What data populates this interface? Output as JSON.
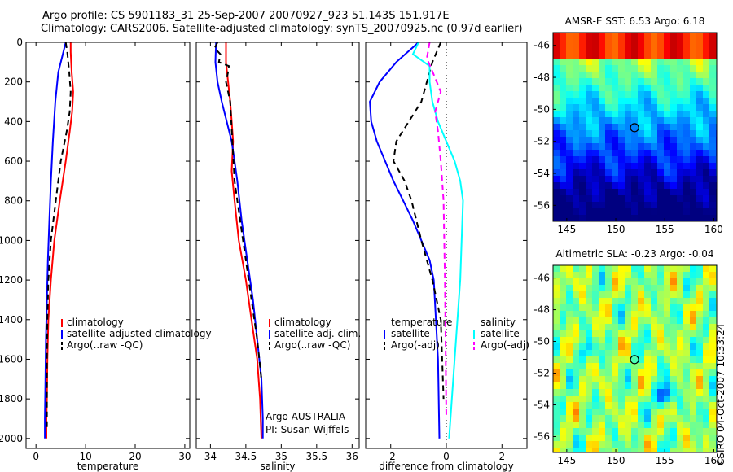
{
  "header": {
    "line1": "Argo profile: CS 5901183_31 25-Sep-2007 20070927_923 51.143S 151.917E",
    "line2": "Climatology: CARS2006. Satellite-adjusted climatology: synTS_20070925.nc (0.97d earlier)"
  },
  "colors": {
    "climatology": "#ff0000",
    "satellite": "#0000ff",
    "argo": "#000000",
    "satellite_salinity_diff": "#00ffff",
    "argo_adj_salinity": "#ff00ff"
  },
  "credits": {
    "line1": "Argo AUSTRALIA",
    "line2": "PI: Susan Wijffels",
    "stamp": "CSIRO 04-Oct-2007 10:33:24"
  },
  "chart_data": [
    {
      "type": "line",
      "xlabel": "temperature",
      "ylabel": "",
      "xlim": [
        -2,
        31
      ],
      "ylim": [
        2050,
        0
      ],
      "y_reversed": true,
      "xticks": [
        0,
        10,
        20,
        30
      ],
      "yticks": [
        0,
        200,
        400,
        600,
        800,
        1000,
        1200,
        1400,
        1600,
        1800,
        2000
      ],
      "legend": [
        "climatology",
        "satellite-adjusted climatology",
        "Argo(..raw -QC)"
      ],
      "legend_loc": "lower-right",
      "series": [
        {
          "name": "climatology",
          "color": "#ff0000",
          "dash": "solid",
          "x": [
            7.0,
            7.0,
            7.2,
            7.5,
            7.3,
            6.8,
            6.0,
            4.8,
            3.7,
            3.0,
            2.5,
            2.3,
            2.2,
            2.1,
            2.1
          ],
          "y": [
            0,
            50,
            150,
            250,
            350,
            450,
            600,
            800,
            1000,
            1200,
            1400,
            1600,
            1800,
            1900,
            2000
          ]
        },
        {
          "name": "satellite-adjusted climatology",
          "color": "#0000ff",
          "dash": "solid",
          "x": [
            6.0,
            5.5,
            4.5,
            3.9,
            3.4,
            3.0,
            2.7,
            2.4,
            2.2,
            2.0,
            1.9,
            1.8,
            1.8,
            1.8
          ],
          "y": [
            0,
            50,
            150,
            300,
            500,
            700,
            900,
            1100,
            1300,
            1500,
            1700,
            1900,
            1960,
            2000
          ]
        },
        {
          "name": "Argo(..raw -QC)",
          "color": "#000000",
          "dash": "dash",
          "x": [
            6.0,
            6.3,
            6.7,
            7.0,
            6.8,
            6.2,
            5.0,
            4.0,
            3.0,
            2.5,
            2.3,
            2.2,
            2.2,
            2.2
          ],
          "y": [
            0,
            50,
            150,
            250,
            350,
            450,
            600,
            800,
            1000,
            1200,
            1400,
            1600,
            1800,
            1960
          ]
        }
      ]
    },
    {
      "type": "line",
      "xlabel": "salinity",
      "ylabel": "",
      "xlim": [
        33.8,
        36.1
      ],
      "ylim": [
        2050,
        0
      ],
      "y_reversed": true,
      "xticks": [
        34,
        34.5,
        35,
        35.5,
        36
      ],
      "tick_labels": [
        "34",
        "34.5",
        "35",
        "35.5",
        "36"
      ],
      "legend": [
        "climatology",
        "satellite adj. clim.",
        "Argo(..raw -QC)"
      ],
      "legend_loc": "lower-right",
      "series": [
        {
          "name": "climatology",
          "color": "#ff0000",
          "dash": "solid",
          "x": [
            34.22,
            34.22,
            34.25,
            34.28,
            34.3,
            34.32,
            34.3,
            34.34,
            34.4,
            34.5,
            34.58,
            34.66,
            34.7,
            34.72
          ],
          "y": [
            0,
            100,
            200,
            300,
            400,
            500,
            650,
            800,
            1000,
            1200,
            1400,
            1600,
            1800,
            2000
          ]
        },
        {
          "name": "satellite adj. clim.",
          "color": "#0000ff",
          "dash": "solid",
          "x": [
            34.08,
            34.07,
            34.1,
            34.16,
            34.23,
            34.3,
            34.34,
            34.38,
            34.44,
            34.52,
            34.6,
            34.66,
            34.72,
            34.74,
            34.74
          ],
          "y": [
            0,
            100,
            200,
            300,
            400,
            500,
            600,
            700,
            900,
            1100,
            1300,
            1500,
            1700,
            1900,
            2000
          ]
        },
        {
          "name": "Argo(..raw -QC)",
          "color": "#000000",
          "dash": "dash",
          "x": [
            34.1,
            34.06,
            34.14,
            34.12,
            34.26,
            34.25,
            34.22,
            34.28,
            34.31,
            34.34,
            34.42,
            34.5,
            34.58,
            34.66,
            34.72
          ],
          "y": [
            0,
            30,
            60,
            100,
            120,
            150,
            200,
            300,
            500,
            700,
            900,
            1100,
            1300,
            1500,
            1700
          ]
        }
      ]
    },
    {
      "type": "line",
      "xlabel": "difference from climatology",
      "ylabel": "",
      "xlim": [
        -2.9,
        2.9
      ],
      "ylim": [
        2050,
        0
      ],
      "y_reversed": true,
      "xticks": [
        -2,
        0,
        2
      ],
      "legend_groups": [
        {
          "title": "temperature",
          "entries": [
            "satellite",
            "Argo(-adj)"
          ]
        },
        {
          "title": "salinity",
          "entries": [
            "satellite",
            "Argo(-adj)"
          ]
        }
      ],
      "legend_loc": "lower-center",
      "series": [
        {
          "name": "temperature satellite",
          "color": "#0000ff",
          "dash": "solid",
          "x": [
            -1.0,
            -1.8,
            -2.4,
            -2.75,
            -2.7,
            -2.5,
            -2.2,
            -1.9,
            -1.55,
            -1.2,
            -0.9,
            -0.6,
            -0.45,
            -0.3,
            -0.25
          ],
          "y": [
            0,
            100,
            200,
            300,
            400,
            500,
            600,
            700,
            800,
            900,
            1000,
            1100,
            1200,
            1600,
            2000
          ]
        },
        {
          "name": "temperature Argo(-adj)",
          "color": "#000000",
          "dash": "dash",
          "x": [
            -0.2,
            -0.5,
            -0.7,
            -0.9,
            -1.35,
            -1.8,
            -1.9,
            -1.5,
            -1.25,
            -0.9,
            -0.5,
            -0.2,
            -0.1
          ],
          "y": [
            0,
            100,
            200,
            300,
            400,
            500,
            600,
            700,
            800,
            1000,
            1200,
            1400,
            1800
          ]
        },
        {
          "name": "salinity satellite",
          "color": "#00ffff",
          "dash": "solid",
          "x": [
            -1.0,
            -1.2,
            -0.6,
            -0.6,
            -0.5,
            -0.3,
            0.0,
            0.3,
            0.5,
            0.6,
            0.5,
            0.3,
            0.1
          ],
          "y": [
            0,
            60,
            120,
            200,
            300,
            400,
            500,
            600,
            700,
            800,
            1200,
            1600,
            2000
          ]
        },
        {
          "name": "salinity Argo(-adj)",
          "color": "#ff00ff",
          "dash": "dash",
          "x": [
            -0.6,
            -0.7,
            -0.4,
            -0.2,
            -0.4,
            -0.3,
            -0.2,
            -0.1,
            -0.05,
            0.0
          ],
          "y": [
            0,
            80,
            180,
            250,
            350,
            450,
            600,
            800,
            1200,
            1900
          ]
        }
      ]
    },
    {
      "type": "heatmap",
      "title": "AMSR-E SST: 6.53 Argo: 6.18",
      "xlim": [
        143.6,
        160.3
      ],
      "ylim": [
        -57.0,
        -45.2
      ],
      "xticks": [
        145,
        150,
        155,
        160
      ],
      "yticks": [
        -46,
        -48,
        -50,
        -52,
        -54,
        -56
      ],
      "marker": {
        "lon": 151.917,
        "lat": -51.143
      },
      "colormap": "jet"
    },
    {
      "type": "heatmap",
      "title": "Altimetric SLA: -0.23 Argo: -0.04",
      "xlim": [
        143.6,
        160.3
      ],
      "ylim": [
        -57.0,
        -45.2
      ],
      "xticks": [
        145,
        150,
        155,
        160
      ],
      "yticks": [
        -46,
        -48,
        -50,
        -52,
        -54,
        -56
      ],
      "marker": {
        "lon": 151.917,
        "lat": -51.143
      },
      "colormap": "jet"
    }
  ]
}
